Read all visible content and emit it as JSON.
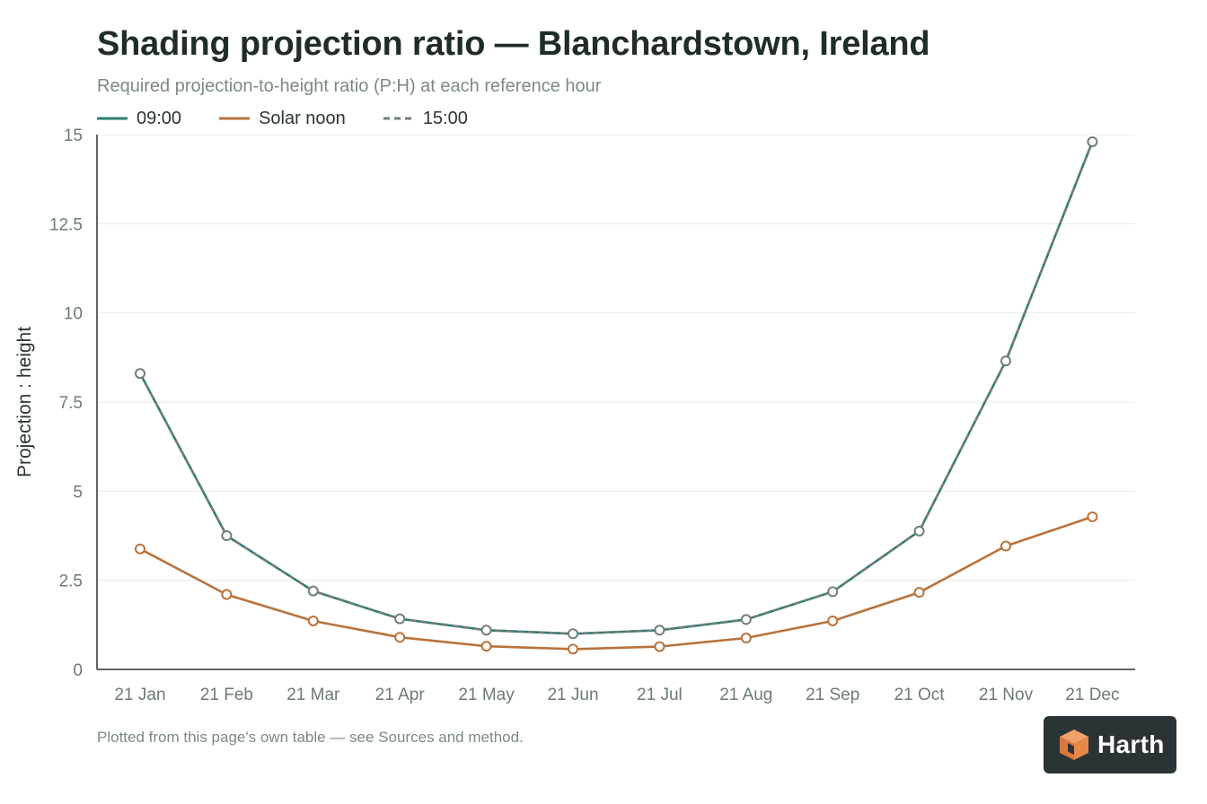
{
  "title": "Shading projection ratio — Blanchardstown, Ireland",
  "subtitle": "Required projection-to-height ratio (P:H) at each reference hour",
  "footnote": "Plotted from this page's own table — see Sources and method.",
  "brand": {
    "name": "Harth",
    "icon": "cube-logo-icon",
    "background": "#2a3436",
    "accent": "#e8874a"
  },
  "colors": {
    "series_0900": "#2e7d77",
    "series_noon": "#b8733b",
    "series_1500": "#6f7f7a",
    "axis": "#2a3532",
    "grid": "#e8ecea",
    "tick_text": "#6b7a76"
  },
  "chart_data": {
    "type": "line",
    "title": "Shading projection ratio — Blanchardstown, Ireland",
    "subtitle": "Required projection-to-height ratio (P:H) at each reference hour",
    "xlabel": "",
    "ylabel": "Projection : height",
    "ylim": [
      0,
      15
    ],
    "yticks": [
      0,
      2.5,
      5,
      7.5,
      10,
      12.5,
      15
    ],
    "ytick_labels": [
      "0",
      "2.5",
      "5",
      "7.5",
      "10",
      "12.5",
      "15"
    ],
    "grid": true,
    "legend_position": "top-left",
    "categories": [
      "21 Jan",
      "21 Feb",
      "21 Mar",
      "21 Apr",
      "21 May",
      "21 Jun",
      "21 Jul",
      "21 Aug",
      "21 Sep",
      "21 Oct",
      "21 Nov",
      "21 Dec"
    ],
    "series": [
      {
        "name": "09:00",
        "style": "solid",
        "values": [
          8.3,
          3.75,
          2.2,
          1.42,
          1.1,
          1.0,
          1.1,
          1.4,
          2.18,
          3.88,
          8.65,
          14.8
        ]
      },
      {
        "name": "Solar noon",
        "style": "solid",
        "values": [
          3.38,
          2.1,
          1.36,
          0.9,
          0.65,
          0.57,
          0.64,
          0.88,
          1.36,
          2.16,
          3.46,
          4.28
        ]
      },
      {
        "name": "15:00",
        "style": "dashed",
        "values": [
          8.3,
          3.75,
          2.2,
          1.42,
          1.1,
          1.0,
          1.1,
          1.4,
          2.18,
          3.88,
          8.65,
          14.8
        ]
      }
    ]
  }
}
